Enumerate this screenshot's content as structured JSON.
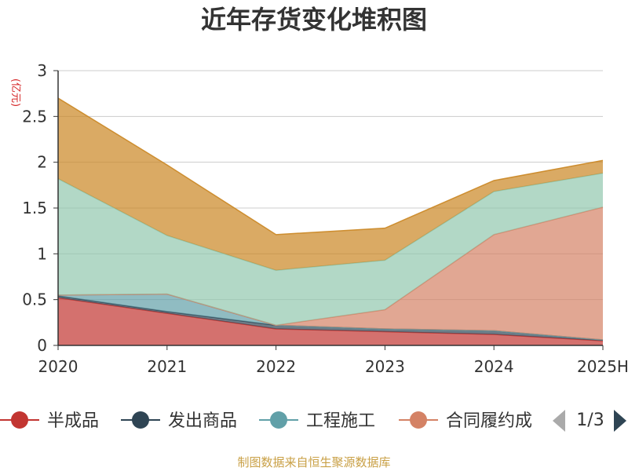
{
  "chart_data": {
    "type": "area",
    "stacked": true,
    "title": "近年存货变化堆积图",
    "unit_label": "(亿元)",
    "categories": [
      "2020",
      "2021",
      "2022",
      "2023",
      "2024",
      "2025H"
    ],
    "ylim": [
      0,
      3
    ],
    "yticks": [
      "0",
      "0.5",
      "1",
      "1.5",
      "2",
      "2.5",
      "3"
    ],
    "grid": true,
    "series": [
      {
        "name": "半成品",
        "color": "#c23531",
        "values": [
          0.52,
          0.35,
          0.18,
          0.15,
          0.12,
          0.05
        ]
      },
      {
        "name": "发出商品",
        "color": "#2f4554",
        "values": [
          0.02,
          0.02,
          0.04,
          0.03,
          0.04,
          0.01
        ]
      },
      {
        "name": "工程施工",
        "color": "#61a0a8",
        "values": [
          0.01,
          0.19,
          0.0,
          0.0,
          0.0,
          0.0
        ]
      },
      {
        "name": "合同履约成本",
        "color": "#d48265",
        "values": [
          0.0,
          0.0,
          0.0,
          0.21,
          1.05,
          1.45
        ]
      },
      {
        "name": "",
        "color": "#91c7ae",
        "values": [
          1.27,
          0.64,
          0.6,
          0.54,
          0.47,
          0.37
        ]
      },
      {
        "name": "",
        "color": "#ca8622",
        "values": [
          0.88,
          0.77,
          0.39,
          0.35,
          0.12,
          0.14
        ]
      }
    ],
    "legend": {
      "visible_items": [
        "半成品",
        "发出商品",
        "工程施工",
        "合同履约成"
      ],
      "page": "1/3",
      "position": "bottom"
    },
    "source": "制图数据来自恒生聚源数据库"
  }
}
